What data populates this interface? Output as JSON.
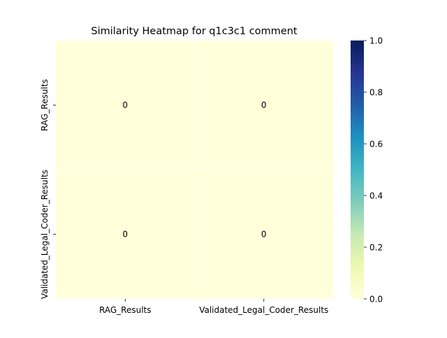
{
  "chart_data": {
    "type": "heatmap",
    "title": "Similarity Heatmap for q1c3c1 comment",
    "xlabel": "",
    "ylabel": "",
    "x_categories": [
      "RAG_Results",
      "Validated_Legal_Coder_Results"
    ],
    "y_categories": [
      "RAG_Results",
      "Validated_Legal_Coder_Results"
    ],
    "values": [
      [
        0,
        0
      ],
      [
        0,
        0
      ]
    ],
    "annotations": [
      [
        "0",
        "0"
      ],
      [
        "0",
        "0"
      ]
    ],
    "colorbar": {
      "colormap": "YlGnBu",
      "range": [
        0,
        1
      ],
      "ticks": [
        0.0,
        0.2,
        0.4,
        0.6,
        0.8,
        1.0
      ],
      "tick_labels": [
        "0.0",
        "0.2",
        "0.4",
        "0.6",
        "0.8",
        "1.0"
      ]
    },
    "colors": {
      "cell_low": "#ffffd9",
      "cell_high": "#081d58",
      "cell_border": "#ffffff"
    }
  }
}
